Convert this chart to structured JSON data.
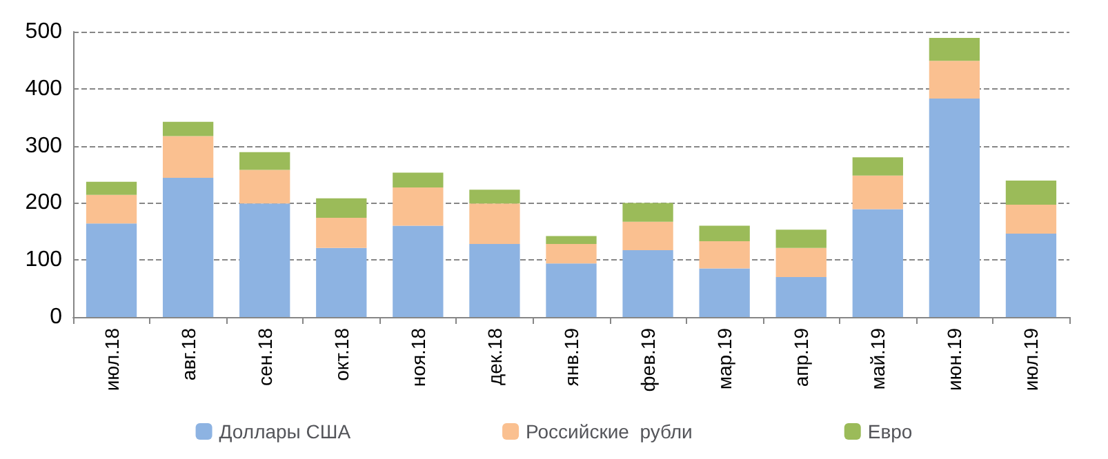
{
  "chart_data": {
    "type": "bar",
    "stacked": true,
    "categories": [
      "июл.18",
      "авг.18",
      "сен.18",
      "окт.18",
      "ноя.18",
      "дек.18",
      "янв.19",
      "фев.19",
      "мар.19",
      "апр.19",
      "май.19",
      "июн.19",
      "июл.19"
    ],
    "series": [
      {
        "name": "Доллары США",
        "color": "#8db3e2",
        "values": [
          164,
          244,
          199,
          121,
          160,
          128,
          94,
          117,
          85,
          70,
          189,
          383,
          146
        ]
      },
      {
        "name": "Российские  рубли",
        "color": "#fac090",
        "values": [
          50,
          73,
          59,
          53,
          67,
          71,
          34,
          50,
          48,
          51,
          59,
          66,
          51
        ]
      },
      {
        "name": "Евро",
        "color": "#9bbb59",
        "values": [
          23,
          25,
          31,
          34,
          26,
          24,
          14,
          33,
          27,
          32,
          32,
          40,
          42
        ]
      }
    ],
    "ylim": [
      0,
      500
    ],
    "yticks": [
      0,
      100,
      200,
      300,
      400,
      500
    ],
    "grid": "y",
    "legend": "bottom"
  }
}
